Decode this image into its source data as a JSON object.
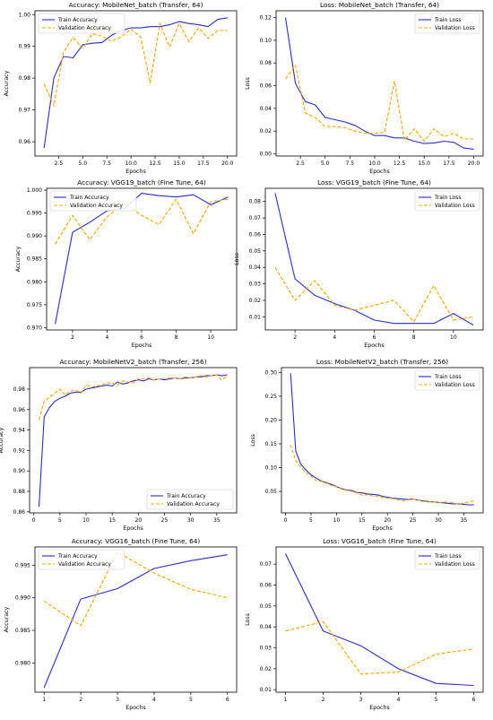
{
  "chart_data": [
    {
      "type": "line",
      "title": "Accuracy: MobileNet_batch (Transfer, 64)",
      "xlabel": "Epochs",
      "ylabel": "Accuracy",
      "xlim": [
        0.05,
        20.95
      ],
      "ylim": [
        0.9555,
        1.0012
      ],
      "xticks": [
        2.5,
        5.0,
        7.5,
        10.0,
        12.5,
        15.0,
        17.5,
        20.0
      ],
      "xtick_labels": [
        "2.5",
        "5.0",
        "7.5",
        "10.0",
        "12.5",
        "15.0",
        "17.5",
        "20.0"
      ],
      "yticks": [
        0.96,
        0.97,
        0.98,
        0.99,
        1.0
      ],
      "ytick_labels": [
        "0.96",
        "0.97",
        "0.98",
        "0.99",
        "1.00"
      ],
      "legend": "upper-left",
      "series": [
        {
          "name": "Train Accuracy",
          "color": "#2b2bcc",
          "style": "solid",
          "x": [
            1,
            2,
            3,
            4,
            5,
            6,
            7,
            8,
            9,
            10,
            11,
            12,
            13,
            14,
            15,
            16,
            17,
            18,
            19,
            20
          ],
          "values": [
            0.958,
            0.98,
            0.9868,
            0.9864,
            0.9905,
            0.991,
            0.9912,
            0.9935,
            0.995,
            0.9958,
            0.9958,
            0.9962,
            0.9962,
            0.9968,
            0.9978,
            0.9972,
            0.9968,
            0.9962,
            0.9985,
            0.999
          ]
        },
        {
          "name": "Validation Accuracy",
          "color": "#f5a800",
          "style": "dashed",
          "x": [
            1,
            2,
            3,
            4,
            5,
            6,
            7,
            8,
            9,
            10,
            11,
            12,
            13,
            14,
            15,
            16,
            17,
            18,
            19,
            20
          ],
          "values": [
            0.9782,
            0.9712,
            0.9882,
            0.9928,
            0.9894,
            0.994,
            0.9932,
            0.9916,
            0.993,
            0.9954,
            0.993,
            0.9785,
            0.9972,
            0.9898,
            0.9972,
            0.9915,
            0.9958,
            0.9925,
            0.995,
            0.995
          ]
        }
      ]
    },
    {
      "type": "line",
      "title": "Loss: MobileNet_batch (Transfer, 64)",
      "xlabel": "Epochs",
      "ylabel": "Loss",
      "xlim": [
        0.05,
        20.95
      ],
      "ylim": [
        -0.002,
        0.126
      ],
      "xticks": [
        2.5,
        5.0,
        7.5,
        10.0,
        12.5,
        15.0,
        17.5,
        20.0
      ],
      "xtick_labels": [
        "2.5",
        "5.0",
        "7.5",
        "10.0",
        "12.5",
        "15.0",
        "17.5",
        "20.0"
      ],
      "yticks": [
        0.0,
        0.02,
        0.04,
        0.06,
        0.08,
        0.1,
        0.12
      ],
      "ytick_labels": [
        "0.00",
        "0.02",
        "0.04",
        "0.06",
        "0.08",
        "0.10",
        "0.12"
      ],
      "legend": "upper-right",
      "series": [
        {
          "name": "Train Loss",
          "color": "#2b2bcc",
          "style": "solid",
          "x": [
            1,
            2,
            3,
            4,
            5,
            6,
            7,
            8,
            9,
            10,
            11,
            12,
            13,
            14,
            15,
            16,
            17,
            18,
            19,
            20
          ],
          "values": [
            0.12,
            0.062,
            0.046,
            0.043,
            0.032,
            0.03,
            0.028,
            0.025,
            0.02,
            0.016,
            0.016,
            0.014,
            0.014,
            0.011,
            0.009,
            0.0095,
            0.011,
            0.01,
            0.005,
            0.004
          ]
        },
        {
          "name": "Validation Loss",
          "color": "#f5a800",
          "style": "dashed",
          "x": [
            1,
            2,
            3,
            4,
            5,
            6,
            7,
            8,
            9,
            10,
            11,
            12,
            13,
            14,
            15,
            16,
            17,
            18,
            19,
            20
          ],
          "values": [
            0.066,
            0.078,
            0.036,
            0.032,
            0.024,
            0.024,
            0.023,
            0.02,
            0.018,
            0.018,
            0.019,
            0.064,
            0.012,
            0.022,
            0.011,
            0.022,
            0.015,
            0.018,
            0.013,
            0.013
          ]
        }
      ]
    },
    {
      "type": "line",
      "title": "Accuracy: VGG19_batch (Fine Tune, 64)",
      "xlabel": "Epochs",
      "ylabel": "Accuracy",
      "xlim": [
        0.5,
        11.5
      ],
      "ylim": [
        0.9695,
        1.0004
      ],
      "xticks": [
        2,
        4,
        6,
        8,
        10
      ],
      "xtick_labels": [
        "2",
        "4",
        "6",
        "8",
        "10"
      ],
      "yticks": [
        0.97,
        0.975,
        0.98,
        0.985,
        0.99,
        0.995,
        1.0
      ],
      "ytick_labels": [
        "0.970",
        "0.975",
        "0.980",
        "0.985",
        "0.990",
        "0.995",
        "1.000"
      ],
      "legend": "upper-left",
      "series": [
        {
          "name": "Train Accuracy",
          "color": "#2b2bcc",
          "style": "solid",
          "x": [
            1,
            2,
            3,
            4,
            5,
            6,
            7,
            8,
            9,
            10,
            11
          ],
          "values": [
            0.9708,
            0.9908,
            0.993,
            0.9955,
            0.996,
            0.9993,
            0.9988,
            0.9985,
            0.999,
            0.9968,
            0.9985
          ]
        },
        {
          "name": "Validation Accuracy",
          "color": "#f5a800",
          "style": "dashed",
          "x": [
            1,
            2,
            3,
            4,
            5,
            6,
            7,
            8,
            9,
            10,
            11
          ],
          "values": [
            0.9882,
            0.9945,
            0.9892,
            0.9942,
            0.9972,
            0.9945,
            0.9925,
            0.998,
            0.9905,
            0.9975,
            0.998
          ]
        }
      ]
    },
    {
      "type": "line",
      "title": "Loss: VGG19_batch (Fine Tune, 64)",
      "xlabel": "Epochs",
      "ylabel": "Loss",
      "xlim": [
        0.5,
        11.5
      ],
      "ylim": [
        0.002,
        0.088
      ],
      "xticks": [
        2,
        4,
        6,
        8,
        10
      ],
      "xtick_labels": [
        "2",
        "4",
        "6",
        "8",
        "10"
      ],
      "yticks": [
        0.01,
        0.02,
        0.03,
        0.04,
        0.05,
        0.06,
        0.07,
        0.08
      ],
      "ytick_labels": [
        "0.01",
        "0.02",
        "0.03",
        "0.04",
        "0.05",
        "0.06",
        "0.07",
        "0.08"
      ],
      "legend": "upper-right",
      "series": [
        {
          "name": "Train Loss",
          "color": "#2b2bcc",
          "style": "solid",
          "x": [
            1,
            2,
            3,
            4,
            5,
            6,
            7,
            8,
            9,
            10,
            11
          ],
          "values": [
            0.085,
            0.033,
            0.023,
            0.018,
            0.014,
            0.008,
            0.006,
            0.006,
            0.006,
            0.012,
            0.005
          ]
        },
        {
          "name": "Validation Loss",
          "color": "#f5a800",
          "style": "dashed",
          "x": [
            1,
            2,
            3,
            4,
            5,
            6,
            7,
            8,
            9,
            10,
            11
          ],
          "values": [
            0.04,
            0.02,
            0.032,
            0.017,
            0.014,
            0.017,
            0.02,
            0.007,
            0.029,
            0.008,
            0.01
          ]
        }
      ]
    },
    {
      "type": "line",
      "title": "Accuracy: MobileNetV2_batch (Transfer, 256)",
      "xlabel": "Epochs",
      "ylabel": "Accuracy",
      "xlim": [
        -0.8,
        38.8
      ],
      "ylim": [
        0.859,
        1.001
      ],
      "xticks": [
        0,
        5,
        10,
        15,
        20,
        25,
        30,
        35
      ],
      "xtick_labels": [
        "0",
        "5",
        "10",
        "15",
        "20",
        "25",
        "30",
        "35"
      ],
      "yticks": [
        0.86,
        0.88,
        0.9,
        0.92,
        0.94,
        0.96,
        0.98
      ],
      "ytick_labels": [
        "0.86",
        "0.88",
        "0.90",
        "0.92",
        "0.94",
        "0.96",
        "0.98"
      ],
      "legend": "lower-right",
      "series": [
        {
          "name": "Train Accuracy",
          "color": "#2b2bcc",
          "style": "solid",
          "x": [
            1,
            2,
            3,
            4,
            5,
            6,
            7,
            8,
            9,
            10,
            11,
            12,
            13,
            14,
            15,
            16,
            17,
            18,
            19,
            20,
            21,
            22,
            23,
            24,
            25,
            26,
            27,
            28,
            29,
            30,
            31,
            32,
            33,
            34,
            35,
            36,
            37
          ],
          "values": [
            0.865,
            0.953,
            0.962,
            0.968,
            0.971,
            0.973,
            0.976,
            0.977,
            0.977,
            0.98,
            0.981,
            0.982,
            0.983,
            0.984,
            0.983,
            0.987,
            0.985,
            0.986,
            0.988,
            0.989,
            0.988,
            0.99,
            0.989,
            0.99,
            0.989,
            0.99,
            0.991,
            0.99,
            0.991,
            0.991,
            0.992,
            0.992,
            0.993,
            0.993,
            0.994,
            0.993,
            0.994
          ]
        },
        {
          "name": "Validation Accuracy",
          "color": "#f5a800",
          "style": "dashed",
          "x": [
            1,
            2,
            3,
            4,
            5,
            6,
            7,
            8,
            9,
            10,
            11,
            12,
            13,
            14,
            15,
            16,
            17,
            18,
            19,
            20,
            21,
            22,
            23,
            24,
            25,
            26,
            27,
            28,
            29,
            30,
            31,
            32,
            33,
            34,
            35,
            36,
            37
          ],
          "values": [
            0.95,
            0.968,
            0.972,
            0.976,
            0.98,
            0.974,
            0.978,
            0.979,
            0.976,
            0.984,
            0.982,
            0.983,
            0.984,
            0.986,
            0.986,
            0.984,
            0.988,
            0.987,
            0.986,
            0.99,
            0.99,
            0.991,
            0.989,
            0.99,
            0.99,
            0.991,
            0.991,
            0.99,
            0.992,
            0.991,
            0.992,
            0.993,
            0.992,
            0.993,
            0.994,
            0.989,
            0.993
          ]
        }
      ]
    },
    {
      "type": "line",
      "title": "Loss: MobileNetV2_batch (Transfer, 256)",
      "xlabel": "Epochs",
      "ylabel": "Loss",
      "xlim": [
        -0.8,
        38.8
      ],
      "ylim": [
        0.005,
        0.31
      ],
      "xticks": [
        0,
        5,
        10,
        15,
        20,
        25,
        30,
        35
      ],
      "xtick_labels": [
        "0",
        "5",
        "10",
        "15",
        "20",
        "25",
        "30",
        "35"
      ],
      "yticks": [
        0.05,
        0.1,
        0.15,
        0.2,
        0.25,
        0.3
      ],
      "ytick_labels": [
        "0.05",
        "0.10",
        "0.15",
        "0.20",
        "0.25",
        "0.30"
      ],
      "legend": "upper-right",
      "series": [
        {
          "name": "Train Loss",
          "color": "#2b2bcc",
          "style": "solid",
          "x": [
            1,
            2,
            3,
            4,
            5,
            6,
            7,
            8,
            9,
            10,
            11,
            12,
            13,
            14,
            15,
            16,
            17,
            18,
            19,
            20,
            21,
            22,
            23,
            24,
            25,
            26,
            27,
            28,
            29,
            30,
            31,
            32,
            33,
            34,
            35,
            36,
            37
          ],
          "values": [
            0.298,
            0.135,
            0.107,
            0.095,
            0.085,
            0.078,
            0.072,
            0.068,
            0.065,
            0.06,
            0.056,
            0.053,
            0.052,
            0.048,
            0.047,
            0.045,
            0.044,
            0.043,
            0.04,
            0.038,
            0.036,
            0.035,
            0.034,
            0.033,
            0.034,
            0.032,
            0.03,
            0.029,
            0.028,
            0.027,
            0.026,
            0.025,
            0.024,
            0.024,
            0.023,
            0.022,
            0.022
          ]
        },
        {
          "name": "Validation Loss",
          "color": "#f5a800",
          "style": "dashed",
          "x": [
            1,
            2,
            3,
            4,
            5,
            6,
            7,
            8,
            9,
            10,
            11,
            12,
            13,
            14,
            15,
            16,
            17,
            18,
            19,
            20,
            21,
            22,
            23,
            24,
            25,
            26,
            27,
            28,
            29,
            30,
            31,
            32,
            33,
            34,
            35,
            36,
            37
          ],
          "values": [
            0.148,
            0.115,
            0.1,
            0.09,
            0.082,
            0.073,
            0.071,
            0.07,
            0.062,
            0.06,
            0.055,
            0.052,
            0.05,
            0.047,
            0.042,
            0.043,
            0.041,
            0.04,
            0.037,
            0.036,
            0.035,
            0.033,
            0.03,
            0.032,
            0.034,
            0.032,
            0.029,
            0.028,
            0.028,
            0.026,
            0.028,
            0.027,
            0.026,
            0.023,
            0.026,
            0.028,
            0.03
          ]
        }
      ]
    },
    {
      "type": "line",
      "title": "Accuracy: VGG16_batch (Fine Tune, 64)",
      "xlabel": "Epochs",
      "ylabel": "Accuracy",
      "xlim": [
        0.75,
        6.25
      ],
      "ylim": [
        0.9755,
        0.9978
      ],
      "xticks": [
        1,
        2,
        3,
        4,
        5,
        6
      ],
      "xtick_labels": [
        "1",
        "2",
        "3",
        "4",
        "5",
        "6"
      ],
      "yticks": [
        0.98,
        0.985,
        0.99,
        0.995
      ],
      "ytick_labels": [
        "0.980",
        "0.985",
        "0.990",
        "0.995"
      ],
      "legend": "upper-left",
      "series": [
        {
          "name": "Train Accuracy",
          "color": "#2b2bcc",
          "style": "solid",
          "x": [
            1,
            2,
            3,
            4,
            5,
            6
          ],
          "values": [
            0.9762,
            0.9898,
            0.9914,
            0.9945,
            0.9957,
            0.9966
          ]
        },
        {
          "name": "Validation Accuracy",
          "color": "#f5a800",
          "style": "dashed",
          "x": [
            1,
            2,
            3,
            4,
            5,
            6
          ],
          "values": [
            0.9895,
            0.9857,
            0.997,
            0.9938,
            0.9913,
            0.99
          ]
        }
      ]
    },
    {
      "type": "line",
      "title": "Loss: VGG16_batch (Fine Tune, 64)",
      "xlabel": "Epochs",
      "ylabel": "Loss",
      "xlim": [
        0.75,
        6.25
      ],
      "ylim": [
        0.0088,
        0.0782
      ],
      "xticks": [
        1,
        2,
        3,
        4,
        5,
        6
      ],
      "xtick_labels": [
        "1",
        "2",
        "3",
        "4",
        "5",
        "6"
      ],
      "yticks": [
        0.01,
        0.02,
        0.03,
        0.04,
        0.05,
        0.06,
        0.07
      ],
      "ytick_labels": [
        "0.01",
        "0.02",
        "0.03",
        "0.04",
        "0.05",
        "0.06",
        "0.07"
      ],
      "legend": "upper-right",
      "series": [
        {
          "name": "Train Loss",
          "color": "#2b2bcc",
          "style": "solid",
          "x": [
            1,
            2,
            3,
            4,
            5,
            6
          ],
          "values": [
            0.075,
            0.038,
            0.031,
            0.02,
            0.013,
            0.012
          ]
        },
        {
          "name": "Validation Loss",
          "color": "#f5a800",
          "style": "dashed",
          "x": [
            1,
            2,
            3,
            4,
            5,
            6
          ],
          "values": [
            0.038,
            0.0425,
            0.0175,
            0.0185,
            0.027,
            0.0295
          ]
        }
      ]
    }
  ]
}
